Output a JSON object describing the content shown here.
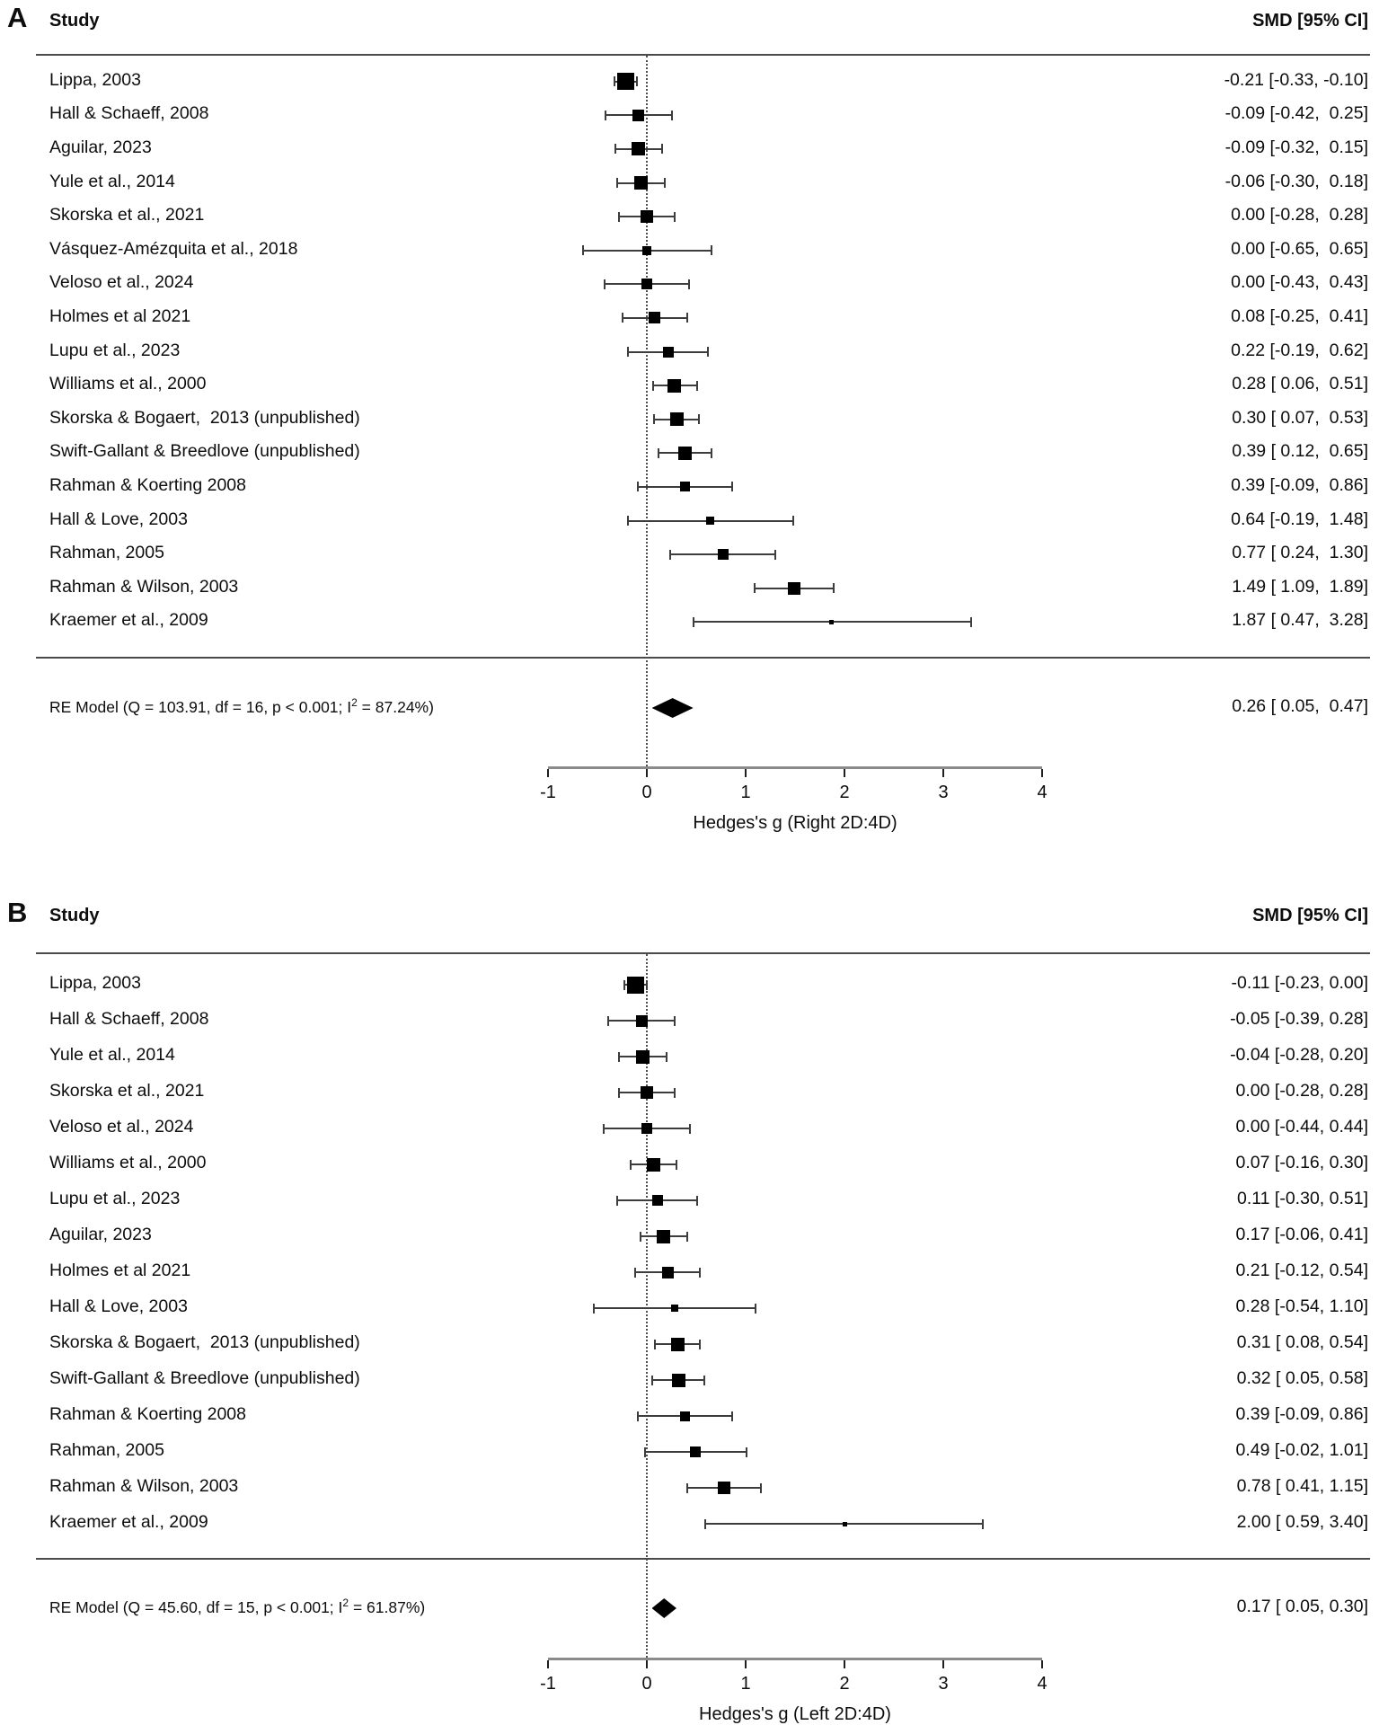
{
  "chart_data": [
    {
      "type": "forest",
      "panel_label": "A",
      "column_headers": {
        "study": "Study",
        "smd": "SMD [95% CI]"
      },
      "axis": {
        "min": -1,
        "max": 4,
        "ticks": [
          -1,
          0,
          1,
          2,
          3,
          4
        ],
        "zero_line": 0,
        "title": "Hedges's g (Right 2D:4D)"
      },
      "studies": [
        {
          "name": "Lippa, 2003",
          "est": -0.21,
          "lo": -0.33,
          "hi": -0.1,
          "size": 19,
          "label": "-0.21 [-0.33, -0.10]"
        },
        {
          "name": "Hall & Schaeff, 2008",
          "est": -0.09,
          "lo": -0.42,
          "hi": 0.25,
          "size": 13,
          "label": "-0.09 [-0.42,  0.25]"
        },
        {
          "name": "Aguilar, 2023",
          "est": -0.09,
          "lo": -0.32,
          "hi": 0.15,
          "size": 15,
          "label": "-0.09 [-0.32,  0.15]"
        },
        {
          "name": "Yule et al., 2014",
          "est": -0.06,
          "lo": -0.3,
          "hi": 0.18,
          "size": 15,
          "label": "-0.06 [-0.30,  0.18]"
        },
        {
          "name": "Skorska et al., 2021",
          "est": 0.0,
          "lo": -0.28,
          "hi": 0.28,
          "size": 14,
          "label": "0.00 [-0.28,  0.28]"
        },
        {
          "name": "Vásquez-Amézquita et al., 2018",
          "est": 0.0,
          "lo": -0.65,
          "hi": 0.65,
          "size": 10,
          "label": "0.00 [-0.65,  0.65]"
        },
        {
          "name": "Veloso et al., 2024",
          "est": 0.0,
          "lo": -0.43,
          "hi": 0.43,
          "size": 12,
          "label": "0.00 [-0.43,  0.43]"
        },
        {
          "name": "Holmes et al 2021",
          "est": 0.08,
          "lo": -0.25,
          "hi": 0.41,
          "size": 13,
          "label": "0.08 [-0.25,  0.41]"
        },
        {
          "name": "Lupu et al., 2023",
          "est": 0.22,
          "lo": -0.19,
          "hi": 0.62,
          "size": 12,
          "label": "0.22 [-0.19,  0.62]"
        },
        {
          "name": "Williams et al., 2000",
          "est": 0.28,
          "lo": 0.06,
          "hi": 0.51,
          "size": 15,
          "label": "0.28 [ 0.06,  0.51]"
        },
        {
          "name": "Skorska & Bogaert,  2013 (unpublished)",
          "est": 0.3,
          "lo": 0.07,
          "hi": 0.53,
          "size": 15,
          "label": "0.30 [ 0.07,  0.53]"
        },
        {
          "name": "Swift-Gallant & Breedlove (unpublished)",
          "est": 0.39,
          "lo": 0.12,
          "hi": 0.65,
          "size": 15,
          "label": "0.39 [ 0.12,  0.65]"
        },
        {
          "name": "Rahman & Koerting 2008",
          "est": 0.39,
          "lo": -0.09,
          "hi": 0.86,
          "size": 11,
          "label": "0.39 [-0.09,  0.86]"
        },
        {
          "name": "Hall & Love, 2003",
          "est": 0.64,
          "lo": -0.19,
          "hi": 1.48,
          "size": 9,
          "label": "0.64 [-0.19,  1.48]"
        },
        {
          "name": "Rahman, 2005",
          "est": 0.77,
          "lo": 0.24,
          "hi": 1.3,
          "size": 12,
          "label": "0.77 [ 0.24,  1.30]"
        },
        {
          "name": "Rahman & Wilson, 2003",
          "est": 1.49,
          "lo": 1.09,
          "hi": 1.89,
          "size": 14,
          "label": "1.49 [ 1.09,  1.89]"
        },
        {
          "name": "Kraemer et al., 2009",
          "est": 1.87,
          "lo": 0.47,
          "hi": 3.28,
          "size": 5,
          "label": "1.87 [ 0.47,  3.28]"
        }
      ],
      "re_model": {
        "prefix": "RE Model (Q = 103.91, df = 16, p < 0.001; I",
        "sup": "2",
        "suffix": " = 87.24%)",
        "est": 0.26,
        "lo": 0.05,
        "hi": 0.47,
        "label": "0.26 [ 0.05,  0.47]"
      }
    },
    {
      "type": "forest",
      "panel_label": "B",
      "column_headers": {
        "study": "Study",
        "smd": "SMD [95% CI]"
      },
      "axis": {
        "min": -1,
        "max": 4,
        "ticks": [
          -1,
          0,
          1,
          2,
          3,
          4
        ],
        "zero_line": 0,
        "title": "Hedges's g (Left 2D:4D)"
      },
      "studies": [
        {
          "name": "Lippa, 2003",
          "est": -0.11,
          "lo": -0.23,
          "hi": 0.0,
          "size": 19,
          "label": "-0.11 [-0.23, 0.00]"
        },
        {
          "name": "Hall & Schaeff, 2008",
          "est": -0.05,
          "lo": -0.39,
          "hi": 0.28,
          "size": 13,
          "label": "-0.05 [-0.39, 0.28]"
        },
        {
          "name": "Yule et al., 2014",
          "est": -0.04,
          "lo": -0.28,
          "hi": 0.2,
          "size": 15,
          "label": "-0.04 [-0.28, 0.20]"
        },
        {
          "name": "Skorska et al., 2021",
          "est": 0.0,
          "lo": -0.28,
          "hi": 0.28,
          "size": 14,
          "label": "0.00 [-0.28, 0.28]"
        },
        {
          "name": "Veloso et al., 2024",
          "est": 0.0,
          "lo": -0.44,
          "hi": 0.44,
          "size": 12,
          "label": "0.00 [-0.44, 0.44]"
        },
        {
          "name": "Williams et al., 2000",
          "est": 0.07,
          "lo": -0.16,
          "hi": 0.3,
          "size": 15,
          "label": "0.07 [-0.16, 0.30]"
        },
        {
          "name": "Lupu et al., 2023",
          "est": 0.11,
          "lo": -0.3,
          "hi": 0.51,
          "size": 12,
          "label": "0.11 [-0.30, 0.51]"
        },
        {
          "name": "Aguilar, 2023",
          "est": 0.17,
          "lo": -0.06,
          "hi": 0.41,
          "size": 15,
          "label": "0.17 [-0.06, 0.41]"
        },
        {
          "name": "Holmes et al 2021",
          "est": 0.21,
          "lo": -0.12,
          "hi": 0.54,
          "size": 13,
          "label": "0.21 [-0.12, 0.54]"
        },
        {
          "name": "Hall & Love, 2003",
          "est": 0.28,
          "lo": -0.54,
          "hi": 1.1,
          "size": 8,
          "label": "0.28 [-0.54, 1.10]"
        },
        {
          "name": "Skorska & Bogaert,  2013 (unpublished)",
          "est": 0.31,
          "lo": 0.08,
          "hi": 0.54,
          "size": 15,
          "label": "0.31 [ 0.08, 0.54]"
        },
        {
          "name": "Swift-Gallant & Breedlove (unpublished)",
          "est": 0.32,
          "lo": 0.05,
          "hi": 0.58,
          "size": 15,
          "label": "0.32 [ 0.05, 0.58]"
        },
        {
          "name": "Rahman & Koerting 2008",
          "est": 0.39,
          "lo": -0.09,
          "hi": 0.86,
          "size": 11,
          "label": "0.39 [-0.09, 0.86]"
        },
        {
          "name": "Rahman, 2005",
          "est": 0.49,
          "lo": -0.02,
          "hi": 1.01,
          "size": 12,
          "label": "0.49 [-0.02, 1.01]"
        },
        {
          "name": "Rahman & Wilson, 2003",
          "est": 0.78,
          "lo": 0.41,
          "hi": 1.15,
          "size": 14,
          "label": "0.78 [ 0.41, 1.15]"
        },
        {
          "name": "Kraemer et al., 2009",
          "est": 2.0,
          "lo": 0.59,
          "hi": 3.4,
          "size": 5,
          "label": "2.00 [ 0.59, 3.40]"
        }
      ],
      "re_model": {
        "prefix": "RE Model (Q = 45.60, df = 15, p < 0.001; I",
        "sup": "2",
        "suffix": " = 61.87%)",
        "est": 0.17,
        "lo": 0.05,
        "hi": 0.3,
        "label": "0.17 [ 0.05, 0.30]"
      }
    }
  ]
}
